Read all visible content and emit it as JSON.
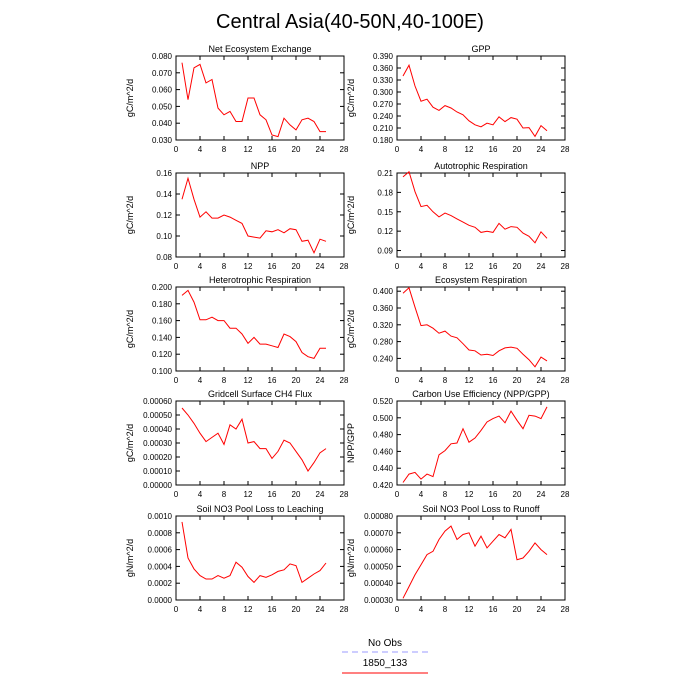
{
  "title": "Central Asia(40-50N,40-100E)",
  "legend": {
    "items": [
      {
        "label": "No Obs",
        "color": "#9b9bff",
        "dash": true
      },
      {
        "label": "1850_133",
        "color": "#ff0000",
        "dash": false
      }
    ]
  },
  "chart_data": [
    {
      "type": "line",
      "title": "Net Ecosystem Exchange",
      "ylabel": "gC/m^2/d",
      "xlim": [
        0,
        28
      ],
      "ylim": [
        0.03,
        0.08
      ],
      "xticks": [
        0,
        4,
        8,
        12,
        16,
        20,
        24,
        28
      ],
      "yticks": [
        "0.030",
        "0.040",
        "0.050",
        "0.060",
        "0.070",
        "0.080"
      ],
      "x": [
        1,
        2,
        3,
        4,
        5,
        6,
        7,
        8,
        9,
        10,
        11,
        12,
        13,
        14,
        15,
        16,
        17,
        18,
        19,
        20,
        21,
        22,
        23,
        24,
        25
      ],
      "series": [
        {
          "name": "1850_133",
          "values": [
            0.076,
            0.054,
            0.073,
            0.075,
            0.064,
            0.066,
            0.049,
            0.045,
            0.047,
            0.041,
            0.041,
            0.055,
            0.055,
            0.045,
            0.042,
            0.033,
            0.032,
            0.043,
            0.039,
            0.036,
            0.042,
            0.043,
            0.041,
            0.035,
            0.035
          ]
        }
      ]
    },
    {
      "type": "line",
      "title": "GPP",
      "ylabel": "gC/m^2/d",
      "xlim": [
        0,
        28
      ],
      "ylim": [
        0.18,
        0.39
      ],
      "xticks": [
        0,
        4,
        8,
        12,
        16,
        20,
        24,
        28
      ],
      "yticks": [
        "0.180",
        "0.210",
        "0.240",
        "0.270",
        "0.300",
        "0.330",
        "0.360",
        "0.390"
      ],
      "x": [
        1,
        2,
        3,
        4,
        5,
        6,
        7,
        8,
        9,
        10,
        11,
        12,
        13,
        14,
        15,
        16,
        17,
        18,
        19,
        20,
        21,
        22,
        23,
        24,
        25
      ],
      "series": [
        {
          "name": "1850_133",
          "values": [
            0.34,
            0.367,
            0.315,
            0.277,
            0.282,
            0.262,
            0.254,
            0.266,
            0.26,
            0.25,
            0.243,
            0.228,
            0.218,
            0.213,
            0.222,
            0.218,
            0.238,
            0.226,
            0.236,
            0.232,
            0.21,
            0.211,
            0.189,
            0.216,
            0.203
          ]
        }
      ]
    },
    {
      "type": "line",
      "title": "NPP",
      "ylabel": "gC/m^2/d",
      "xlim": [
        0,
        28
      ],
      "ylim": [
        0.08,
        0.16
      ],
      "xticks": [
        0,
        4,
        8,
        12,
        16,
        20,
        24,
        28
      ],
      "yticks": [
        "0.08",
        "0.10",
        "0.12",
        "0.14",
        "0.16"
      ],
      "x": [
        1,
        2,
        3,
        4,
        5,
        6,
        7,
        8,
        9,
        10,
        11,
        12,
        13,
        14,
        15,
        16,
        17,
        18,
        19,
        20,
        21,
        22,
        23,
        24,
        25
      ],
      "series": [
        {
          "name": "1850_133",
          "values": [
            0.135,
            0.155,
            0.135,
            0.118,
            0.123,
            0.117,
            0.117,
            0.12,
            0.118,
            0.115,
            0.112,
            0.1,
            0.099,
            0.098,
            0.105,
            0.104,
            0.106,
            0.103,
            0.107,
            0.106,
            0.095,
            0.096,
            0.084,
            0.097,
            0.095
          ]
        }
      ]
    },
    {
      "type": "line",
      "title": "Autotrophic Respiration",
      "ylabel": "gC/m^2/d",
      "xlim": [
        0,
        28
      ],
      "ylim": [
        0.08,
        0.21
      ],
      "xticks": [
        0,
        4,
        8,
        12,
        16,
        20,
        24,
        28
      ],
      "yticks": [
        "0.09",
        "0.12",
        "0.15",
        "0.18",
        "0.21"
      ],
      "x": [
        1,
        2,
        3,
        4,
        5,
        6,
        7,
        8,
        9,
        10,
        11,
        12,
        13,
        14,
        15,
        16,
        17,
        18,
        19,
        20,
        21,
        22,
        23,
        24,
        25
      ],
      "series": [
        {
          "name": "1850_133",
          "values": [
            0.204,
            0.212,
            0.181,
            0.158,
            0.16,
            0.15,
            0.142,
            0.148,
            0.144,
            0.139,
            0.134,
            0.129,
            0.126,
            0.118,
            0.12,
            0.118,
            0.132,
            0.123,
            0.127,
            0.126,
            0.117,
            0.112,
            0.102,
            0.119,
            0.109
          ]
        }
      ]
    },
    {
      "type": "line",
      "title": "Heterotrophic Respiration",
      "ylabel": "gC/m^2/d",
      "xlim": [
        0,
        28
      ],
      "ylim": [
        0.1,
        0.2
      ],
      "xticks": [
        0,
        4,
        8,
        12,
        16,
        20,
        24,
        28
      ],
      "yticks": [
        "0.100",
        "0.120",
        "0.140",
        "0.160",
        "0.180",
        "0.200"
      ],
      "x": [
        1,
        2,
        3,
        4,
        5,
        6,
        7,
        8,
        9,
        10,
        11,
        12,
        13,
        14,
        15,
        16,
        17,
        18,
        19,
        20,
        21,
        22,
        23,
        24,
        25
      ],
      "series": [
        {
          "name": "1850_133",
          "values": [
            0.19,
            0.196,
            0.182,
            0.161,
            0.161,
            0.164,
            0.16,
            0.16,
            0.151,
            0.151,
            0.144,
            0.133,
            0.14,
            0.132,
            0.132,
            0.13,
            0.128,
            0.144,
            0.141,
            0.135,
            0.122,
            0.117,
            0.115,
            0.127,
            0.127
          ]
        }
      ]
    },
    {
      "type": "line",
      "title": "Ecosystem Respiration",
      "ylabel": "gC/m^2/d",
      "xlim": [
        0,
        28
      ],
      "ylim": [
        0.21,
        0.41
      ],
      "xticks": [
        0,
        4,
        8,
        12,
        16,
        20,
        24,
        28
      ],
      "yticks": [
        "0.240",
        "0.280",
        "0.320",
        "0.360",
        "0.400"
      ],
      "x": [
        1,
        2,
        3,
        4,
        5,
        6,
        7,
        8,
        9,
        10,
        11,
        12,
        13,
        14,
        15,
        16,
        17,
        18,
        19,
        20,
        21,
        22,
        23,
        24,
        25
      ],
      "series": [
        {
          "name": "1850_133",
          "values": [
            0.395,
            0.408,
            0.362,
            0.318,
            0.32,
            0.312,
            0.3,
            0.305,
            0.293,
            0.289,
            0.275,
            0.26,
            0.258,
            0.248,
            0.25,
            0.247,
            0.258,
            0.265,
            0.267,
            0.264,
            0.25,
            0.237,
            0.22,
            0.243,
            0.234
          ]
        }
      ]
    },
    {
      "type": "line",
      "title": "Gridcell Surface CH4 Flux",
      "ylabel": "gC/m^2/d",
      "xlim": [
        0,
        28
      ],
      "ylim": [
        0.0,
        0.0006
      ],
      "xticks": [
        0,
        4,
        8,
        12,
        16,
        20,
        24,
        28
      ],
      "yticks": [
        "0.00000",
        "0.00010",
        "0.00020",
        "0.00030",
        "0.00040",
        "0.00050",
        "0.00060"
      ],
      "x": [
        1,
        2,
        3,
        4,
        5,
        6,
        7,
        8,
        9,
        10,
        11,
        12,
        13,
        14,
        15,
        16,
        17,
        18,
        19,
        20,
        21,
        22,
        23,
        24,
        25
      ],
      "series": [
        {
          "name": "1850_133",
          "values": [
            0.00055,
            0.0005,
            0.00044,
            0.00037,
            0.00031,
            0.00034,
            0.00037,
            0.00029,
            0.00043,
            0.0004,
            0.00047,
            0.0003,
            0.00031,
            0.00026,
            0.00026,
            0.00019,
            0.00024,
            0.00032,
            0.0003,
            0.00024,
            0.00018,
            0.0001,
            0.00016,
            0.00023,
            0.00026
          ]
        }
      ]
    },
    {
      "type": "line",
      "title": "Carbon Use Efficiency (NPP/GPP)",
      "ylabel": "NPP/GPP",
      "xlim": [
        0,
        28
      ],
      "ylim": [
        0.42,
        0.52
      ],
      "xticks": [
        0,
        4,
        8,
        12,
        16,
        20,
        24,
        28
      ],
      "yticks": [
        "0.420",
        "0.440",
        "0.460",
        "0.480",
        "0.500",
        "0.520"
      ],
      "x": [
        1,
        2,
        3,
        4,
        5,
        6,
        7,
        8,
        9,
        10,
        11,
        12,
        13,
        14,
        15,
        16,
        17,
        18,
        19,
        20,
        21,
        22,
        23,
        24,
        25
      ],
      "series": [
        {
          "name": "1850_133",
          "values": [
            0.423,
            0.433,
            0.435,
            0.427,
            0.433,
            0.43,
            0.456,
            0.461,
            0.469,
            0.47,
            0.487,
            0.471,
            0.476,
            0.485,
            0.495,
            0.499,
            0.502,
            0.494,
            0.508,
            0.497,
            0.487,
            0.503,
            0.502,
            0.499,
            0.513
          ]
        }
      ]
    },
    {
      "type": "line",
      "title": "Soil NO3 Pool Loss to Leaching",
      "ylabel": "gN/m^2/d",
      "xlim": [
        0,
        28
      ],
      "ylim": [
        0.0,
        0.001
      ],
      "xticks": [
        0,
        4,
        8,
        12,
        16,
        20,
        24,
        28
      ],
      "yticks": [
        "0.0000",
        "0.0002",
        "0.0004",
        "0.0006",
        "0.0008",
        "0.0010"
      ],
      "x": [
        1,
        2,
        3,
        4,
        5,
        6,
        7,
        8,
        9,
        10,
        11,
        12,
        13,
        14,
        15,
        16,
        17,
        18,
        19,
        20,
        21,
        22,
        23,
        24,
        25
      ],
      "series": [
        {
          "name": "1850_133",
          "values": [
            0.00093,
            0.0005,
            0.00037,
            0.00029,
            0.00025,
            0.00025,
            0.00029,
            0.00026,
            0.00029,
            0.00045,
            0.00039,
            0.00028,
            0.00021,
            0.00029,
            0.00027,
            0.0003,
            0.00034,
            0.00036,
            0.00043,
            0.00041,
            0.00021,
            0.00026,
            0.00031,
            0.00035,
            0.00044
          ]
        }
      ]
    },
    {
      "type": "line",
      "title": "Soil NO3 Pool Loss to Runoff",
      "ylabel": "gN/m^2/d",
      "xlim": [
        0,
        28
      ],
      "ylim": [
        0.0003,
        0.0008
      ],
      "xticks": [
        0,
        4,
        8,
        12,
        16,
        20,
        24,
        28
      ],
      "yticks": [
        "0.00030",
        "0.00040",
        "0.00050",
        "0.00060",
        "0.00070",
        "0.00080"
      ],
      "x": [
        1,
        2,
        3,
        4,
        5,
        6,
        7,
        8,
        9,
        10,
        11,
        12,
        13,
        14,
        15,
        16,
        17,
        18,
        19,
        20,
        21,
        22,
        23,
        24,
        25
      ],
      "series": [
        {
          "name": "1850_133",
          "values": [
            0.00031,
            0.00038,
            0.00045,
            0.00051,
            0.00057,
            0.00059,
            0.00066,
            0.00071,
            0.00074,
            0.00066,
            0.00069,
            0.0007,
            0.00062,
            0.00068,
            0.00061,
            0.00065,
            0.00069,
            0.00067,
            0.00072,
            0.00054,
            0.00055,
            0.00059,
            0.00064,
            0.0006,
            0.00057
          ]
        }
      ]
    }
  ]
}
